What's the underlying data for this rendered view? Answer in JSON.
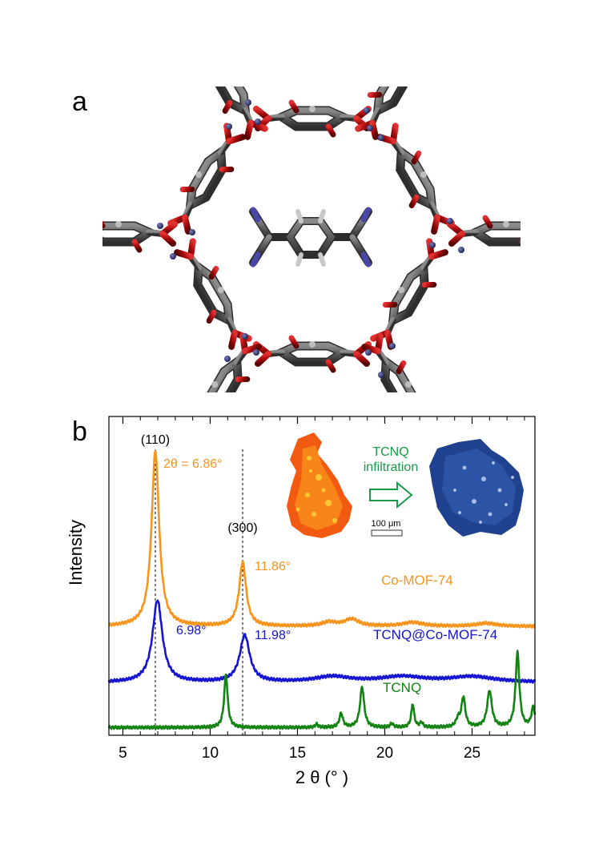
{
  "panel_a": {
    "letter": "a"
  },
  "panel_b": {
    "letter": "b"
  },
  "inset": {
    "arrow_label_line1": "TCNQ",
    "arrow_label_line2": "infiltration",
    "scale_bar_label": "100 μm"
  },
  "colors": {
    "co_mof": "#f7941d",
    "tcnq_mof": "#1414d2",
    "tcnq": "#138413",
    "inset_text": "#1a9a4a",
    "oxygen": "#b01010",
    "carbon": "#555555",
    "nitrogen": "#4848a8",
    "hydrogen": "#c8c8c8",
    "metal": "#2a3060"
  },
  "chart_data": {
    "type": "line",
    "xlabel": "2 θ (° )",
    "ylabel": "Intensity",
    "xlim": [
      4.2,
      28.6
    ],
    "xticks": [
      5,
      10,
      15,
      20,
      25
    ],
    "series": [
      {
        "name": "Co-MOF-74",
        "color": "#f7941d",
        "baseline": 1.3,
        "peaks": [
          [
            6.86,
            2.25,
            0.26
          ],
          [
            11.86,
            0.82,
            0.24
          ],
          [
            16.8,
            0.05,
            0.5
          ],
          [
            18.1,
            0.09,
            0.5
          ],
          [
            21.6,
            0.05,
            0.7
          ],
          [
            25.8,
            0.04,
            0.7
          ]
        ]
      },
      {
        "name": "TCNQ@Co-MOF-74",
        "color": "#1414d2",
        "baseline": 0.58,
        "peaks": [
          [
            6.98,
            1.05,
            0.34
          ],
          [
            11.98,
            0.6,
            0.34
          ],
          [
            17.0,
            0.07,
            1.2
          ],
          [
            21.0,
            0.07,
            1.5
          ],
          [
            25.0,
            0.07,
            1.5
          ]
        ]
      },
      {
        "name": "TCNQ",
        "color": "#138413",
        "baseline": 0.0,
        "peaks": [
          [
            10.9,
            0.68,
            0.12
          ],
          [
            16.1,
            0.04,
            0.1
          ],
          [
            17.5,
            0.18,
            0.12
          ],
          [
            18.7,
            0.52,
            0.14
          ],
          [
            20.4,
            0.05,
            0.1
          ],
          [
            21.6,
            0.3,
            0.1
          ],
          [
            22.1,
            0.06,
            0.1
          ],
          [
            24.2,
            0.1,
            0.14
          ],
          [
            24.5,
            0.38,
            0.13
          ],
          [
            26.0,
            0.47,
            0.16
          ],
          [
            27.6,
            0.96,
            0.13
          ],
          [
            28.5,
            0.25,
            0.12
          ]
        ]
      }
    ],
    "reference_lines": [
      6.86,
      11.86
    ],
    "annotations": {
      "hkl_110": "(110)",
      "hkl_300": "(300)",
      "co_peak1": "2θ = 6.86°",
      "co_peak2": "11.86°",
      "tcnq_mof_peak1": "6.98°",
      "tcnq_mof_peak2": "11.98°",
      "label_co": "Co-MOF-74",
      "label_tcnq_mof": "TCNQ@Co-MOF-74",
      "label_tcnq": "TCNQ"
    }
  }
}
